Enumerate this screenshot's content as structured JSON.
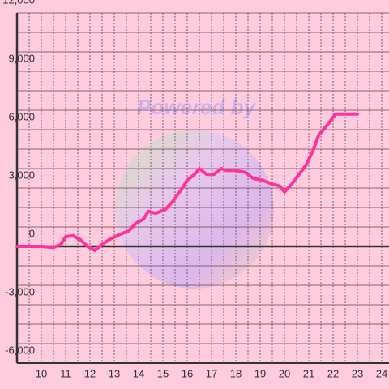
{
  "chart_data": {
    "type": "line",
    "watermark": "Powered by",
    "series": [
      {
        "color": "#ff3399",
        "x": [
          9.0,
          9.5,
          10,
          10.5,
          10.8,
          11,
          11.3,
          11.6,
          11.9,
          12.2,
          12.5,
          12.8,
          13.2,
          13.6,
          13.9,
          14.2,
          14.4,
          14.7,
          15.1,
          15.4,
          15.8,
          16.0,
          16.3,
          16.5,
          16.8,
          17.1,
          17.4,
          17.6,
          18.0,
          18.4,
          18.7,
          19.1,
          19.5,
          19.8,
          20.0,
          20.3,
          20.6,
          20.9,
          21.2,
          21.4,
          21.8,
          22.1,
          22.5,
          23.0
        ],
        "values": [
          0,
          0,
          0,
          -50,
          100,
          500,
          550,
          350,
          0,
          -200,
          100,
          350,
          600,
          800,
          1200,
          1400,
          1800,
          1700,
          1900,
          2300,
          3000,
          3400,
          3700,
          4000,
          3700,
          3700,
          4000,
          3900,
          3900,
          3800,
          3500,
          3400,
          3200,
          3100,
          2800,
          3200,
          3700,
          4200,
          5000,
          5700,
          6300,
          6800,
          6800,
          6800
        ]
      }
    ],
    "xlim": [
      9,
      24.3
    ],
    "xticks": [
      10,
      11,
      12,
      13,
      14,
      15,
      16,
      17,
      18,
      19,
      20,
      21,
      22,
      23,
      24
    ],
    "x_minor_ticks": [
      9.5,
      10.5,
      11.5,
      12.5,
      13.5,
      14.5,
      15.5,
      16.5,
      17.5,
      18.5,
      19.5,
      20.5,
      21.5,
      22.5,
      23.5
    ],
    "ylim": [
      -6000,
      12000
    ],
    "yticks": [
      {
        "value": -6000,
        "label": "-6,000"
      },
      {
        "value": -3000,
        "label": "-3,000"
      },
      0,
      {
        "value": 3000,
        "label": "3,000"
      },
      {
        "value": 6000,
        "label": "6,000"
      },
      {
        "value": 9000,
        "label": "9,000"
      },
      {
        "value": 12000,
        "label": "12,000"
      }
    ],
    "y_minor_ticks": [
      -5000,
      -4000,
      -2000,
      -1000,
      1000,
      2000,
      4000,
      5000,
      7000,
      8000,
      10000,
      11000
    ],
    "grid": true
  }
}
